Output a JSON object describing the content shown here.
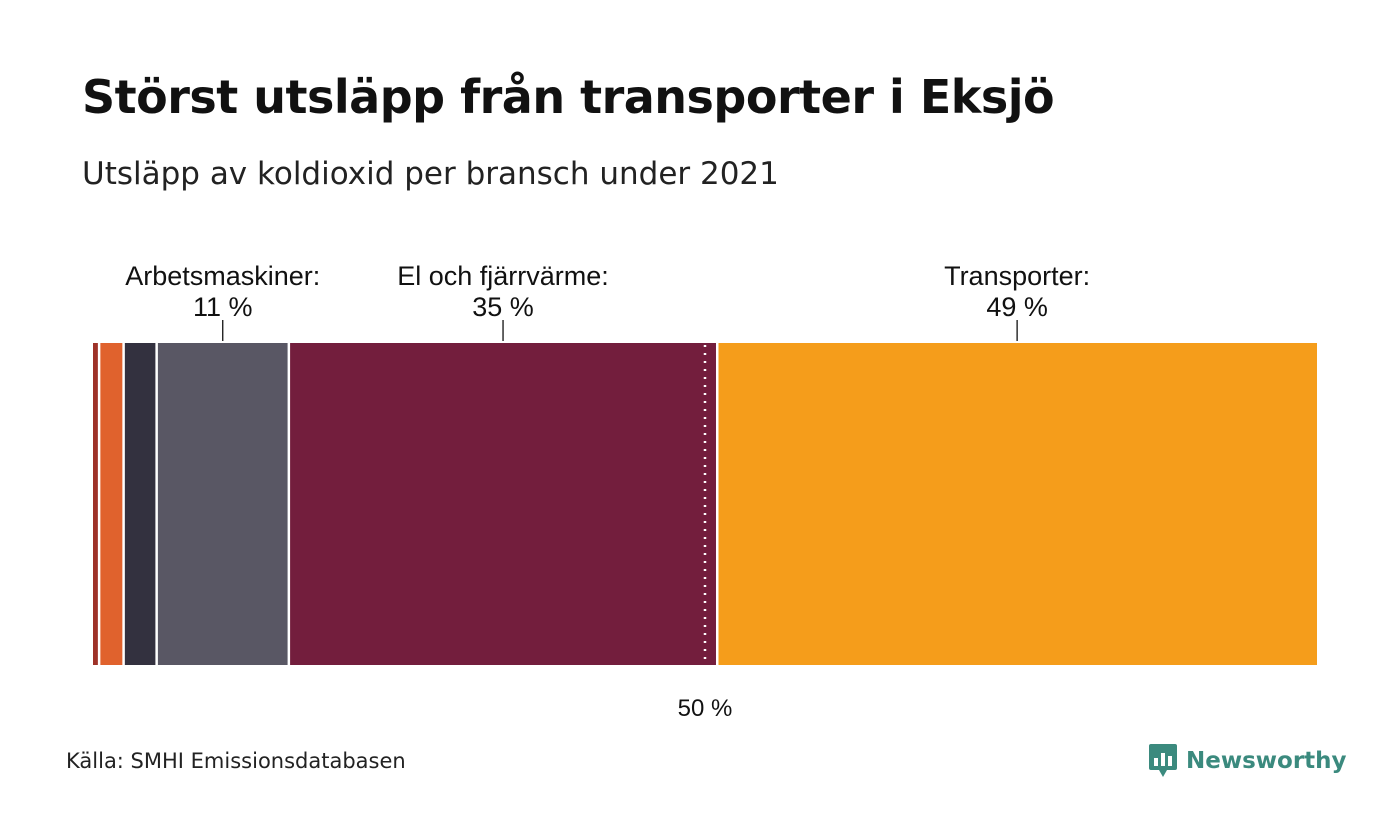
{
  "header": {
    "title": "Störst utsläpp från transporter i Eksjö",
    "subtitle": "Utsläpp av koldioxid per bransch under 2021"
  },
  "footer": {
    "source": "Källa: SMHI Emissionsdatabasen",
    "brand": "Newsworthy",
    "brand_icon": "newsworthy-logo-icon",
    "brand_color": "#3b8a7e"
  },
  "chart_data": {
    "type": "bar",
    "orientation": "horizontal-stacked",
    "unit": "%",
    "xlim": [
      0,
      100
    ],
    "title": "Störst utsläpp från transporter i Eksjö",
    "subtitle": "Utsläpp av koldioxid per bransch under 2021",
    "segments": [
      {
        "value": 0.5,
        "color": "#9e3228"
      },
      {
        "value": 2.0,
        "color": "#e0622d"
      },
      {
        "value": 2.7,
        "color": "#33313f"
      },
      {
        "value": 10.8,
        "color": "#595764"
      },
      {
        "value": 35.0,
        "color": "#731e3d",
        "name": "El och fjärrvärme:",
        "value_label": "35 %"
      },
      {
        "value": 49.0,
        "color": "#f59d1b",
        "name": "Transporter:",
        "value_label": "49 %"
      }
    ],
    "callouts": [
      {
        "name": "Arbetsmaskiner:",
        "value_label": "11 %",
        "segment": 3
      },
      {
        "name": "El och fjärrvärme:",
        "value_label": "35 %",
        "segment": 4
      },
      {
        "name": "Transporter:",
        "value_label": "49 %",
        "segment": 5
      }
    ],
    "reference_line": {
      "value": 50,
      "label": "50 %",
      "style": "dotted",
      "color": "#ffffff"
    }
  }
}
